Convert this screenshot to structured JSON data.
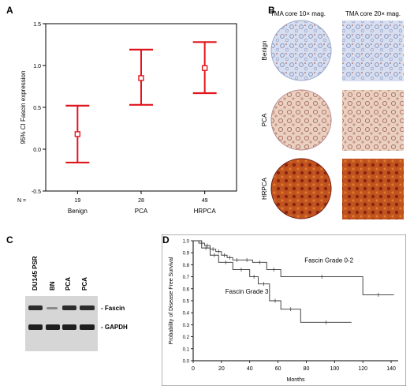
{
  "panels": {
    "a": {
      "letter": "A",
      "chart_data": {
        "type": "errorbar",
        "ylabel": "95% CI Fascin expression",
        "ylim": [
          -0.5,
          1.5
        ],
        "yticks": [
          "1.5",
          "1.0",
          "0.5",
          "0.0",
          "-0.5"
        ],
        "yticks_values": [
          1.5,
          1.0,
          0.5,
          0.0,
          -0.5
        ],
        "n_label": "N =",
        "categories": [
          "Benign",
          "PCA",
          "HRPCA"
        ],
        "n": [
          "19",
          "28",
          "49"
        ],
        "means": [
          0.18,
          0.85,
          0.97
        ],
        "lower": [
          -0.16,
          0.53,
          0.67
        ],
        "upper": [
          0.52,
          1.19,
          1.28
        ],
        "color": "#e0161d"
      }
    },
    "b": {
      "letter": "B",
      "col_headers": [
        "TMA core 10× mag.",
        "TMA core 20× mag."
      ],
      "row_labels": [
        "Benign",
        "PCA",
        "HRPCA"
      ]
    },
    "c": {
      "letter": "C",
      "lane_labels": [
        "DU145 PSR",
        "BN",
        "PCA",
        "PCA"
      ],
      "band_labels": [
        "- Fascin",
        "- GAPDH"
      ]
    },
    "d": {
      "letter": "D",
      "chart_data": {
        "type": "line",
        "ylabel": "Probability of Disease Free Survival",
        "xlabel": "Months",
        "xlim": [
          0,
          145
        ],
        "ylim": [
          0,
          1.0
        ],
        "xticks": [
          "0",
          "20",
          "40",
          "60",
          "80",
          "100",
          "120",
          "140"
        ],
        "xticks_values": [
          0,
          20,
          40,
          60,
          80,
          100,
          120,
          140
        ],
        "yticks": [
          "0.0",
          "0.1",
          "0.2",
          "0.3",
          "0.4",
          "0.5",
          "0.6",
          "0.7",
          "0.8",
          "0.9",
          "1.0"
        ],
        "yticks_values": [
          0,
          0.1,
          0.2,
          0.3,
          0.4,
          0.5,
          0.6,
          0.7,
          0.8,
          0.9,
          1.0
        ],
        "series": [
          {
            "name": "Fascin Grade 0-2",
            "x": [
              0,
              4,
              8,
              12,
              16,
              20,
              24,
              28,
              34,
              42,
              52,
              62,
              120,
              142
            ],
            "y": [
              1.0,
              0.98,
              0.96,
              0.93,
              0.91,
              0.88,
              0.86,
              0.84,
              0.84,
              0.82,
              0.76,
              0.7,
              0.55,
              0.55
            ]
          },
          {
            "name": "Fascin Grade 3",
            "x": [
              0,
              6,
              12,
              18,
              28,
              40,
              46,
              54,
              62,
              76,
              112
            ],
            "y": [
              1.0,
              0.94,
              0.88,
              0.82,
              0.76,
              0.7,
              0.64,
              0.5,
              0.43,
              0.32,
              0.32
            ]
          }
        ]
      }
    }
  }
}
